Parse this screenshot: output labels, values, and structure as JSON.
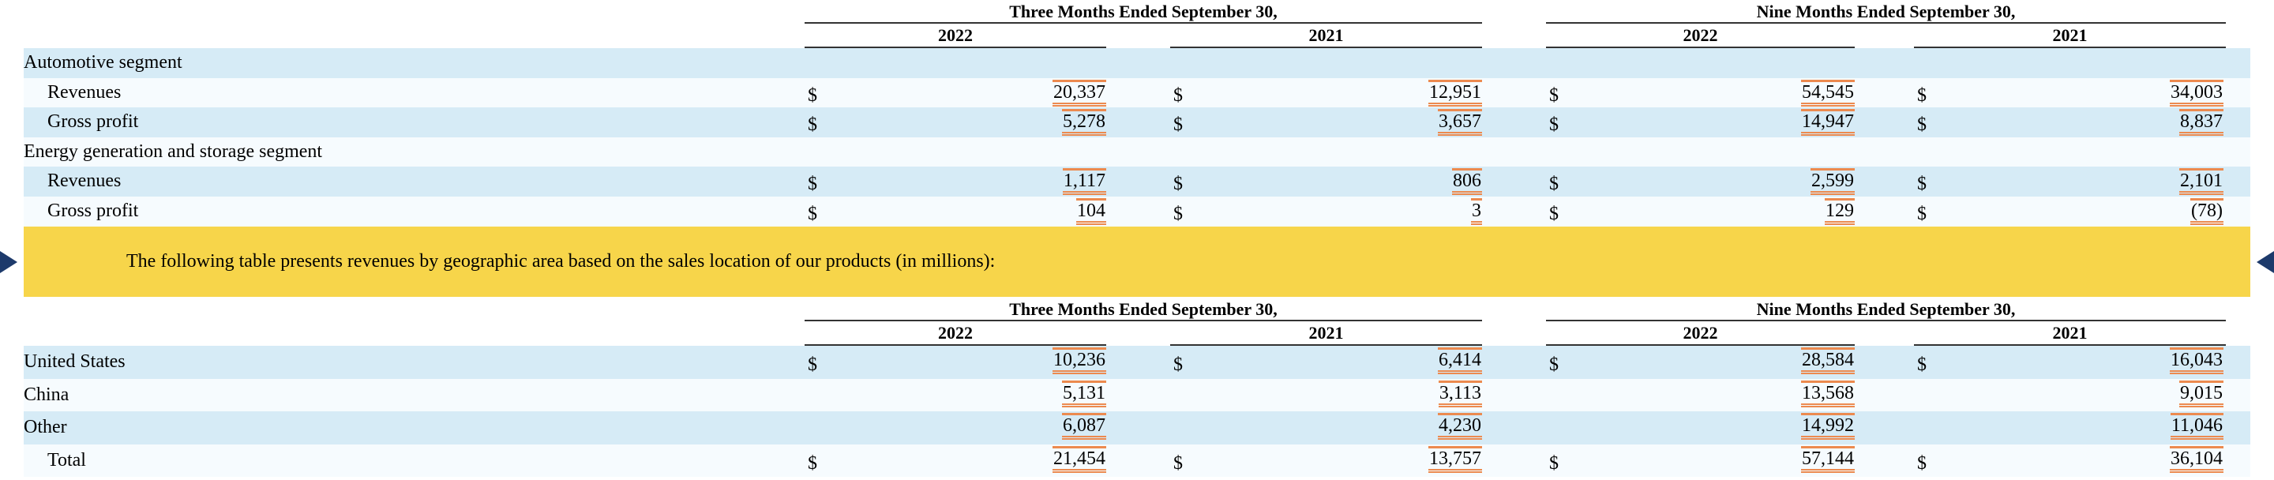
{
  "table1": {
    "groups": [
      "Three Months Ended September 30,",
      "Nine Months Ended September 30,"
    ],
    "years": [
      "2022",
      "2021",
      "2022",
      "2021"
    ],
    "rows": [
      {
        "label": "Automotive segment",
        "level": 0
      },
      {
        "label": "Revenues",
        "level": 1,
        "dollars": [
          "$",
          "$",
          "$",
          "$"
        ],
        "values": [
          "20,337",
          "12,951",
          "54,545",
          "34,003"
        ]
      },
      {
        "label": "Gross profit",
        "level": 1,
        "dollars": [
          "$",
          "$",
          "$",
          "$"
        ],
        "values": [
          "5,278",
          "3,657",
          "14,947",
          "8,837"
        ]
      },
      {
        "label": "Energy generation and storage segment",
        "level": 0
      },
      {
        "label": "Revenues",
        "level": 1,
        "dollars": [
          "$",
          "$",
          "$",
          "$"
        ],
        "values": [
          "1,117",
          "806",
          "2,599",
          "2,101"
        ]
      },
      {
        "label": "Gross profit",
        "level": 1,
        "dollars": [
          "$",
          "$",
          "$",
          "$"
        ],
        "values": [
          "104",
          "3",
          "129",
          "(78)"
        ]
      }
    ]
  },
  "banner": "The following table presents revenues by geographic area based on the sales location of our products (in millions):",
  "table2": {
    "groups": [
      "Three Months Ended September 30,",
      "Nine Months Ended September 30,"
    ],
    "years": [
      "2022",
      "2021",
      "2022",
      "2021"
    ],
    "rows": [
      {
        "label": "United States",
        "level": 0,
        "dollars": [
          "$",
          "$",
          "$",
          "$"
        ],
        "values": [
          "10,236",
          "6,414",
          "28,584",
          "16,043"
        ]
      },
      {
        "label": "China",
        "level": 0,
        "values": [
          "5,131",
          "3,113",
          "13,568",
          "9,015"
        ]
      },
      {
        "label": "Other",
        "level": 0,
        "values": [
          "6,087",
          "4,230",
          "14,992",
          "11,046"
        ]
      },
      {
        "label": "Total",
        "level": 1,
        "dollars": [
          "$",
          "$",
          "$",
          "$"
        ],
        "values": [
          "21,454",
          "13,757",
          "57,144",
          "36,104"
        ]
      }
    ]
  }
}
